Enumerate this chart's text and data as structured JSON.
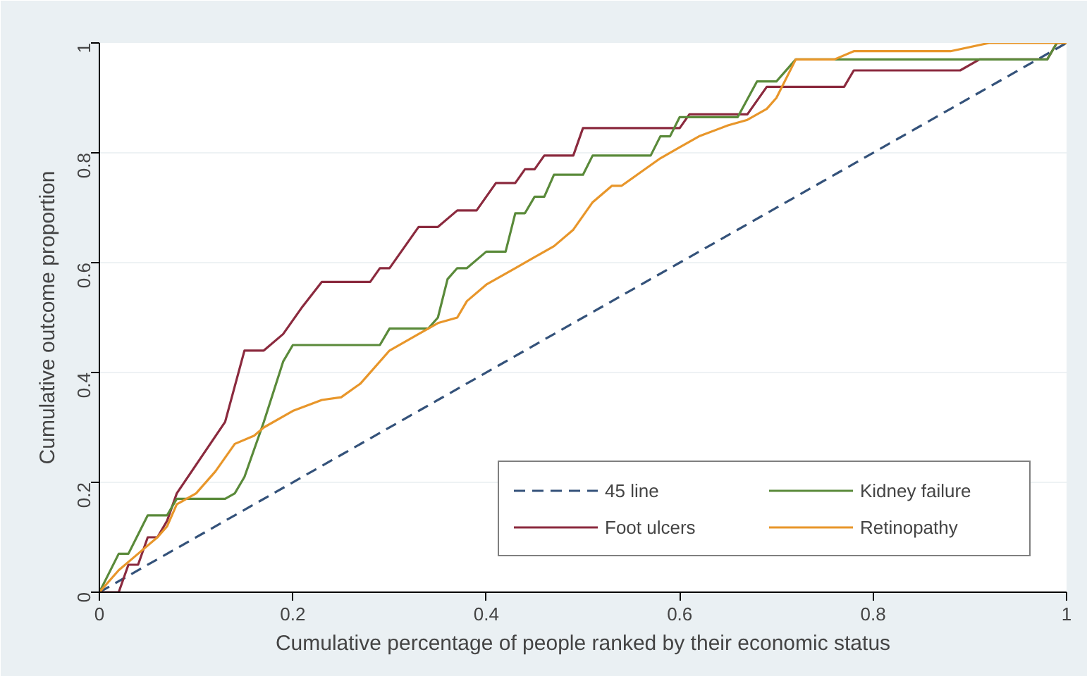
{
  "chart_data": {
    "type": "line",
    "xlabel": "Cumulative percentage of people ranked by their economic status",
    "ylabel": "Cumulative outcome proportion",
    "xlim": [
      0,
      1
    ],
    "ylim": [
      0,
      1
    ],
    "xticks": [
      0,
      0.2,
      0.4,
      0.6,
      0.8,
      1
    ],
    "yticks": [
      0,
      0.2,
      0.4,
      0.6,
      0.8,
      1
    ],
    "grid": "y",
    "legend": "bottom right",
    "series": [
      {
        "name": "45 line",
        "color": "#34527a",
        "line_style": "dashed",
        "x": [
          0,
          1
        ],
        "values": [
          0,
          1
        ]
      },
      {
        "name": "Foot ulcers",
        "color": "#8b2a3e",
        "x": [
          0,
          0.02,
          0.03,
          0.04,
          0.05,
          0.06,
          0.07,
          0.08,
          0.13,
          0.15,
          0.17,
          0.19,
          0.21,
          0.23,
          0.28,
          0.29,
          0.3,
          0.33,
          0.35,
          0.37,
          0.39,
          0.41,
          0.43,
          0.44,
          0.45,
          0.46,
          0.49,
          0.5,
          0.6,
          0.61,
          0.67,
          0.69,
          0.77,
          0.78,
          0.89,
          0.91,
          0.98,
          0.99,
          1
        ],
        "values": [
          0,
          0,
          0.05,
          0.05,
          0.1,
          0.1,
          0.13,
          0.18,
          0.31,
          0.44,
          0.44,
          0.47,
          0.52,
          0.565,
          0.565,
          0.59,
          0.59,
          0.665,
          0.665,
          0.695,
          0.695,
          0.745,
          0.745,
          0.77,
          0.77,
          0.795,
          0.795,
          0.845,
          0.845,
          0.87,
          0.87,
          0.92,
          0.92,
          0.95,
          0.95,
          0.97,
          0.97,
          1,
          1
        ]
      },
      {
        "name": "Kidney failure",
        "color": "#5a8a3a",
        "x": [
          0,
          0.02,
          0.03,
          0.05,
          0.07,
          0.08,
          0.13,
          0.14,
          0.15,
          0.17,
          0.19,
          0.2,
          0.29,
          0.3,
          0.34,
          0.35,
          0.36,
          0.37,
          0.38,
          0.4,
          0.42,
          0.43,
          0.44,
          0.45,
          0.46,
          0.47,
          0.5,
          0.51,
          0.57,
          0.58,
          0.59,
          0.6,
          0.66,
          0.68,
          0.7,
          0.72,
          0.98,
          0.99,
          1
        ],
        "values": [
          0,
          0.07,
          0.07,
          0.14,
          0.14,
          0.17,
          0.17,
          0.18,
          0.21,
          0.31,
          0.42,
          0.45,
          0.45,
          0.48,
          0.48,
          0.5,
          0.57,
          0.59,
          0.59,
          0.62,
          0.62,
          0.69,
          0.69,
          0.72,
          0.72,
          0.76,
          0.76,
          0.795,
          0.795,
          0.83,
          0.83,
          0.865,
          0.865,
          0.93,
          0.93,
          0.97,
          0.97,
          1,
          1
        ]
      },
      {
        "name": "Retinopathy",
        "color": "#e8962a",
        "x": [
          0,
          0.02,
          0.04,
          0.06,
          0.07,
          0.08,
          0.1,
          0.12,
          0.14,
          0.16,
          0.17,
          0.2,
          0.23,
          0.25,
          0.27,
          0.3,
          0.33,
          0.35,
          0.37,
          0.38,
          0.4,
          0.43,
          0.45,
          0.47,
          0.49,
          0.51,
          0.53,
          0.54,
          0.56,
          0.58,
          0.6,
          0.62,
          0.65,
          0.67,
          0.69,
          0.7,
          0.72,
          0.76,
          0.78,
          0.88,
          0.92,
          1
        ],
        "values": [
          0,
          0.04,
          0.07,
          0.1,
          0.12,
          0.16,
          0.18,
          0.22,
          0.27,
          0.285,
          0.3,
          0.33,
          0.35,
          0.355,
          0.38,
          0.44,
          0.47,
          0.49,
          0.5,
          0.53,
          0.56,
          0.59,
          0.61,
          0.63,
          0.66,
          0.71,
          0.74,
          0.74,
          0.765,
          0.79,
          0.81,
          0.83,
          0.85,
          0.86,
          0.88,
          0.9,
          0.97,
          0.97,
          0.985,
          0.985,
          1,
          1
        ]
      }
    ]
  }
}
